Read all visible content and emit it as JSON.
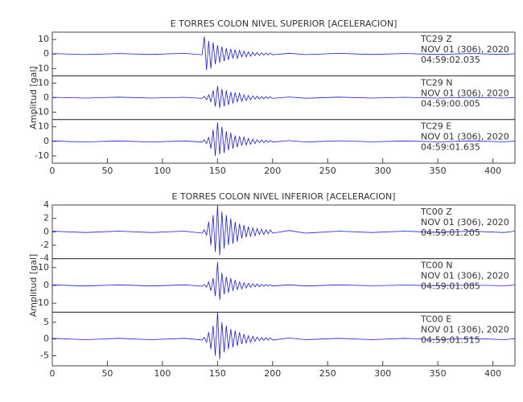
{
  "chart_data": [
    {
      "type": "line",
      "title": "E TORRES COLON NIVEL SUPERIOR [ACELERACION]",
      "ylabel": "Amplitud [gal]",
      "color": "#1a1aee",
      "xlim": [
        0,
        420
      ],
      "xticks": [
        0,
        50,
        100,
        150,
        200,
        250,
        300,
        350,
        400
      ],
      "x": [
        0,
        30,
        60,
        90,
        120,
        136,
        138,
        140,
        142,
        144,
        146,
        148,
        150,
        152,
        154,
        156,
        158,
        160,
        162,
        164,
        166,
        168,
        170,
        172,
        174,
        176,
        178,
        180,
        182,
        184,
        186,
        188,
        190,
        192,
        194,
        196,
        198,
        200,
        215,
        230,
        260,
        290,
        320,
        350,
        380,
        410,
        420
      ],
      "series": [
        {
          "name": "TC29   Z",
          "date": "NOV 01 (306), 2020",
          "time": "04:59:02.035",
          "ylim": [
            -15,
            15
          ],
          "yticks": [
            -10,
            0,
            10
          ],
          "values": [
            0.3,
            -0.4,
            0.3,
            -0.3,
            0.4,
            -0.5,
            12,
            -11,
            9,
            -10,
            8,
            -7,
            6,
            -6,
            5,
            -5,
            4,
            -4,
            3.5,
            -3,
            3,
            -3,
            2.5,
            -2,
            2,
            -2,
            1.5,
            -1.5,
            1.2,
            -1,
            1,
            -1,
            0.8,
            -0.8,
            0.7,
            -0.6,
            0.6,
            -0.5,
            0.5,
            -0.4,
            0.4,
            -0.3,
            0.3,
            -0.3,
            0.3,
            -0.3,
            0.2
          ]
        },
        {
          "name": "TC29   N",
          "date": "NOV 01 (306), 2020",
          "time": "04:59:00.005",
          "ylim": [
            -15,
            15
          ],
          "yticks": [
            -10,
            0,
            10
          ],
          "values": [
            0.3,
            -0.3,
            0.4,
            -0.3,
            0.3,
            -0.5,
            1,
            -1.5,
            2,
            -3,
            5,
            -6,
            8,
            -7,
            6,
            -6,
            5,
            -5,
            4,
            -4,
            3.5,
            -3,
            3,
            -2.5,
            2,
            -2,
            1.5,
            -1.5,
            1.2,
            -1,
            1,
            -1,
            0.8,
            -0.8,
            0.7,
            -0.6,
            0.6,
            -0.5,
            0.5,
            -0.4,
            0.4,
            -0.3,
            0.3,
            -0.3,
            0.3,
            -0.3,
            0.2
          ]
        },
        {
          "name": "TC29   E",
          "date": "NOV 01 (306), 2020",
          "time": "04:59:01.635",
          "ylim": [
            -15,
            15
          ],
          "yticks": [
            -10,
            0,
            10
          ],
          "values": [
            0.3,
            -0.4,
            0.3,
            -0.4,
            0.3,
            -0.5,
            1,
            -1.5,
            3,
            -5,
            8,
            -10,
            13,
            -9,
            10,
            -8,
            7,
            -6,
            6,
            -5,
            4,
            -4,
            3.5,
            -3,
            3,
            -2.5,
            2,
            -2,
            1.5,
            -1.5,
            1.2,
            -1,
            1,
            -1,
            0.8,
            -0.7,
            0.6,
            -0.5,
            0.5,
            -0.4,
            0.4,
            -0.3,
            0.3,
            -0.3,
            0.3,
            -0.3,
            0.2
          ]
        }
      ]
    },
    {
      "type": "line",
      "title": "E TORRES COLON NIVEL INFERIOR [ACELERACION]",
      "ylabel": "Amplitud [gal]",
      "color": "#1a1aee",
      "xlim": [
        0,
        420
      ],
      "xticks": [
        0,
        50,
        100,
        150,
        200,
        250,
        300,
        350,
        400
      ],
      "x": [
        0,
        30,
        60,
        90,
        120,
        136,
        138,
        140,
        142,
        144,
        146,
        148,
        150,
        152,
        154,
        156,
        158,
        160,
        162,
        164,
        166,
        168,
        170,
        172,
        174,
        176,
        178,
        180,
        182,
        184,
        186,
        188,
        190,
        192,
        194,
        196,
        198,
        200,
        215,
        230,
        260,
        290,
        320,
        350,
        380,
        410,
        420
      ],
      "series": [
        {
          "name": "TC00   Z",
          "date": "NOV 01 (306), 2020",
          "time": "04:59:01.205",
          "ylim": [
            -4,
            4
          ],
          "yticks": [
            -4,
            -2,
            0,
            2,
            4
          ],
          "values": [
            0.1,
            -0.1,
            0.1,
            -0.1,
            0.1,
            -0.2,
            0.3,
            -0.5,
            1.5,
            -2,
            2.5,
            -3,
            4,
            -3.5,
            3,
            -2.5,
            2.5,
            -2,
            2,
            -1.8,
            1.5,
            -1.5,
            1.2,
            -1,
            1,
            -0.8,
            0.8,
            -0.7,
            0.6,
            -0.6,
            0.5,
            -0.4,
            0.4,
            -0.4,
            0.3,
            -0.3,
            0.3,
            -0.2,
            0.2,
            -0.2,
            0.1,
            -0.1,
            0.1,
            -0.1,
            0.1,
            -0.1,
            0.1
          ]
        },
        {
          "name": "TC00   N",
          "date": "NOV 01 (306), 2020",
          "time": "04:59:01.085",
          "ylim": [
            -15,
            15
          ],
          "yticks": [
            -10,
            0,
            10
          ],
          "values": [
            0.3,
            -0.3,
            0.3,
            -0.3,
            0.3,
            -0.4,
            0.5,
            -1,
            2,
            -3,
            4,
            -6,
            13,
            -8,
            7,
            -5,
            5,
            -4,
            4,
            -3,
            3,
            -2.5,
            2,
            -2,
            1.5,
            -1.5,
            1.2,
            -1,
            1,
            -0.8,
            0.8,
            -0.7,
            0.6,
            -0.5,
            0.5,
            -0.4,
            0.4,
            -0.3,
            0.3,
            -0.3,
            0.3,
            -0.2,
            0.2,
            -0.2,
            0.2,
            -0.2,
            0.2
          ]
        },
        {
          "name": "TC00   E",
          "date": "NOV 01 (306), 2020",
          "time": "04:59:01.515",
          "ylim": [
            -8,
            8
          ],
          "yticks": [
            -5,
            0,
            5
          ],
          "values": [
            0.2,
            -0.2,
            0.2,
            -0.2,
            0.2,
            -0.3,
            0.5,
            -1,
            2,
            -3,
            4,
            -5,
            8,
            -6,
            5,
            -4,
            4,
            -3,
            3,
            -2.5,
            2.5,
            -2,
            2,
            -1.5,
            1.5,
            -1.2,
            1,
            -1,
            0.8,
            -0.7,
            0.6,
            -0.5,
            0.5,
            -0.4,
            0.4,
            -0.3,
            0.3,
            -0.3,
            0.3,
            -0.2,
            0.2,
            -0.2,
            0.2,
            -0.2,
            0.2,
            -0.2,
            0.1
          ]
        }
      ]
    }
  ]
}
